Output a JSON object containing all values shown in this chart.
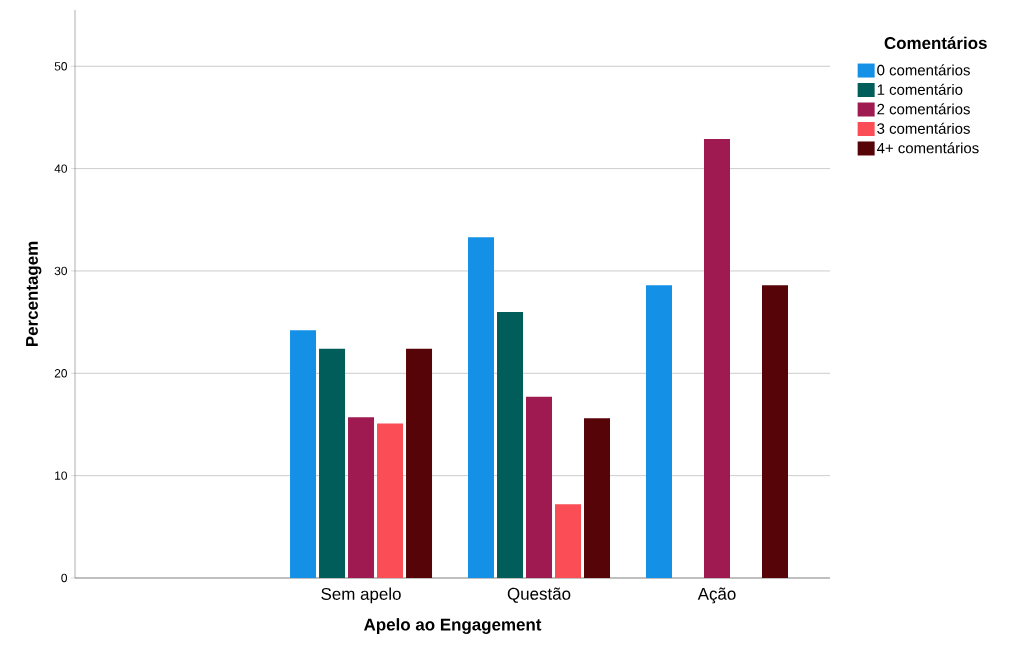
{
  "chart_data": {
    "type": "bar",
    "xlabel": "Apelo ao Engagement",
    "ylabel": "Percentagem",
    "legend_title": "Comentários",
    "categories": [
      null,
      "Sem apelo",
      "Questão",
      "Ação"
    ],
    "series": [
      {
        "name": "0 comentários",
        "color": "#1491e6",
        "values": [
          null,
          24.2,
          33.3,
          28.6
        ]
      },
      {
        "name": "1 comentário",
        "color": "#005d5a",
        "values": [
          null,
          22.4,
          26.0,
          null
        ]
      },
      {
        "name": "2 comentários",
        "color": "#9e1a51",
        "values": [
          null,
          15.7,
          17.7,
          42.9
        ]
      },
      {
        "name": "3 comentários",
        "color": "#fa4d56",
        "values": [
          null,
          15.1,
          7.2,
          null
        ]
      },
      {
        "name": "4+ comentários",
        "color": "#570408",
        "values": [
          null,
          22.4,
          15.6,
          28.6
        ]
      }
    ],
    "ylim": [
      0,
      55.5
    ],
    "yticks": [
      0,
      10,
      20,
      30,
      40,
      50
    ],
    "grid": "y",
    "legend": "top right"
  }
}
